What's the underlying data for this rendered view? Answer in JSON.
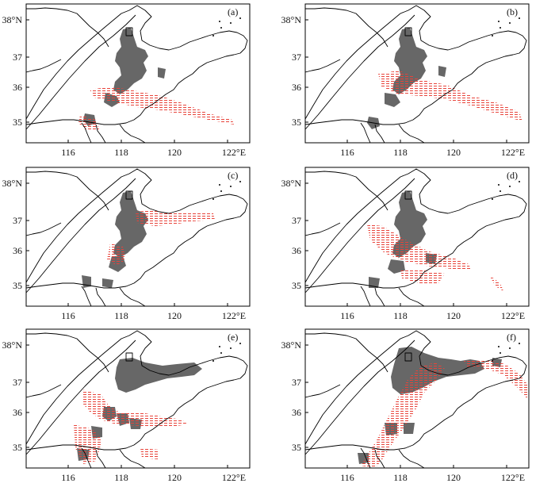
{
  "figure": {
    "colors": {
      "frame": "#000000",
      "coast": "#000000",
      "shaded_area": "#676767",
      "hatch": "#e8433a"
    },
    "x_axis": {
      "ticks": [
        "116",
        "118",
        "120",
        "122°E"
      ]
    },
    "y_axis": {
      "ticks": [
        "38°N",
        "37",
        "36",
        "35"
      ]
    },
    "panels": [
      {
        "id": "a",
        "label": "(a)"
      },
      {
        "id": "b",
        "label": "(b)"
      },
      {
        "id": "c",
        "label": "(c)"
      },
      {
        "id": "d",
        "label": "(d)"
      },
      {
        "id": "e",
        "label": "(e)"
      },
      {
        "id": "f",
        "label": "(f)"
      }
    ]
  }
}
